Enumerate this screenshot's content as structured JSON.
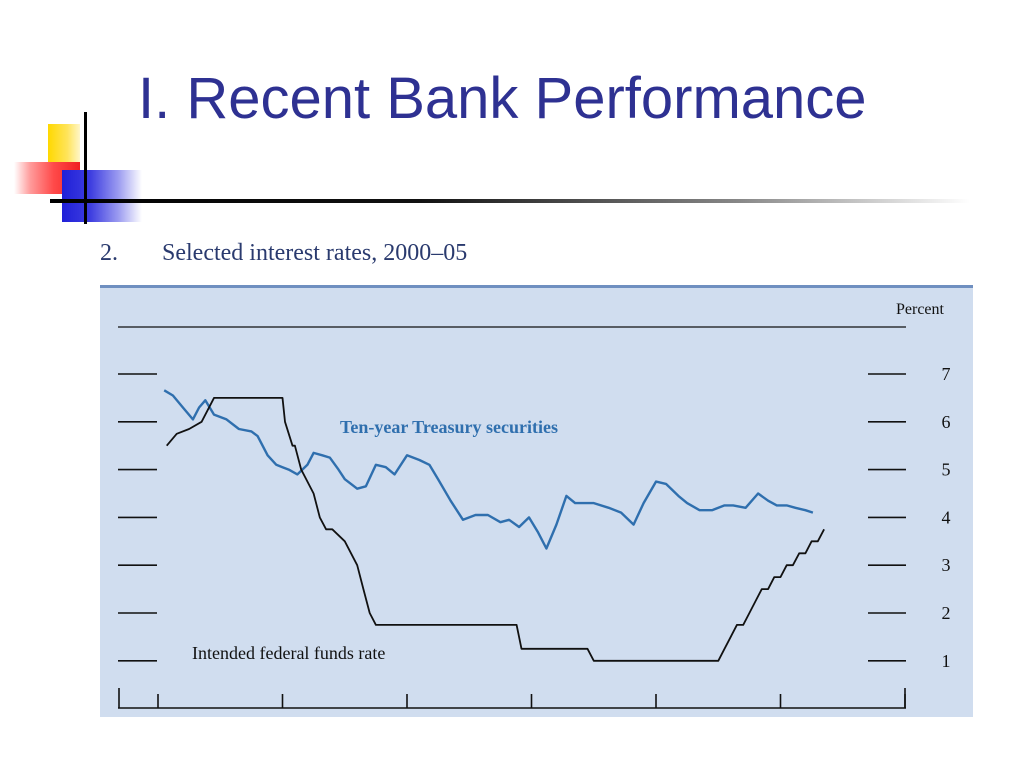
{
  "slide": {
    "title": "I. Recent Bank Performance"
  },
  "figure": {
    "number": "2.",
    "caption": "Selected interest rates, 2000–05"
  },
  "colors": {
    "title": "#2e3192",
    "panel_background": "#d0ddef",
    "treasury_line": "#2f6fae",
    "fed_funds_line": "#111111"
  },
  "chart_data": {
    "type": "line",
    "title": "Selected interest rates, 2000–05",
    "ylabel": "Percent",
    "ylim": [
      0,
      8
    ],
    "yticks": [
      1,
      2,
      3,
      4,
      5,
      6,
      7
    ],
    "xlim": [
      2000,
      2006
    ],
    "xticks": [
      2000,
      2001,
      2002,
      2003,
      2004,
      2005,
      2006
    ],
    "grid": false,
    "series": [
      {
        "name": "Ten-year Treasury securities",
        "color": "#2f6fae",
        "x": [
          2000.05,
          2000.12,
          2000.2,
          2000.28,
          2000.33,
          2000.38,
          2000.45,
          2000.55,
          2000.65,
          2000.75,
          2000.8,
          2000.88,
          2000.95,
          2001.0,
          2001.05,
          2001.12,
          2001.2,
          2001.25,
          2001.32,
          2001.38,
          2001.45,
          2001.5,
          2001.6,
          2001.67,
          2001.75,
          2001.83,
          2001.9,
          2002.0,
          2002.1,
          2002.18,
          2002.25,
          2002.35,
          2002.45,
          2002.55,
          2002.65,
          2002.75,
          2002.82,
          2002.9,
          2002.98,
          2003.05,
          2003.12,
          2003.2,
          2003.28,
          2003.35,
          2003.42,
          2003.5,
          2003.62,
          2003.72,
          2003.82,
          2003.9,
          2004.0,
          2004.08,
          2004.18,
          2004.25,
          2004.35,
          2004.45,
          2004.55,
          2004.62,
          2004.72,
          2004.82,
          2004.9,
          2004.97,
          2005.05,
          2005.12,
          2005.2,
          2005.26
        ],
        "values": [
          6.66,
          6.55,
          6.3,
          6.05,
          6.3,
          6.45,
          6.15,
          6.05,
          5.85,
          5.8,
          5.7,
          5.3,
          5.1,
          5.05,
          5.0,
          4.9,
          5.1,
          5.35,
          5.3,
          5.25,
          5.0,
          4.8,
          4.6,
          4.65,
          5.1,
          5.05,
          4.9,
          5.3,
          5.2,
          5.1,
          4.8,
          4.35,
          3.95,
          4.05,
          4.05,
          3.9,
          3.95,
          3.8,
          4.0,
          3.7,
          3.35,
          3.85,
          4.45,
          4.3,
          4.3,
          4.3,
          4.2,
          4.1,
          3.85,
          4.3,
          4.75,
          4.7,
          4.45,
          4.3,
          4.15,
          4.15,
          4.25,
          4.25,
          4.2,
          4.5,
          4.35,
          4.25,
          4.25,
          4.2,
          4.15,
          4.1
        ]
      },
      {
        "name": "Intended federal funds rate",
        "color": "#111111",
        "x": [
          2000.07,
          2000.15,
          2000.25,
          2000.35,
          2000.45,
          2001.0,
          2001.02,
          2001.08,
          2001.1,
          2001.15,
          2001.25,
          2001.3,
          2001.35,
          2001.4,
          2001.5,
          2001.6,
          2001.65,
          2001.7,
          2001.75,
          2001.8,
          2001.85,
          2001.9,
          2001.95,
          2002.0,
          2002.88,
          2002.92,
          2003.0,
          2003.45,
          2003.5,
          2003.55,
          2004.5,
          2004.55,
          2004.6,
          2004.65,
          2004.7,
          2004.75,
          2004.8,
          2004.85,
          2004.9,
          2004.95,
          2005.0,
          2005.05,
          2005.1,
          2005.15,
          2005.2,
          2005.25,
          2005.3,
          2005.35
        ],
        "values": [
          5.5,
          5.75,
          5.85,
          6.0,
          6.5,
          6.5,
          6.0,
          5.5,
          5.5,
          5.0,
          4.5,
          4.0,
          3.75,
          3.75,
          3.5,
          3.0,
          2.5,
          2.0,
          1.75,
          1.75,
          1.75,
          1.75,
          1.75,
          1.75,
          1.75,
          1.25,
          1.25,
          1.25,
          1.0,
          1.0,
          1.0,
          1.25,
          1.5,
          1.75,
          1.75,
          2.0,
          2.25,
          2.5,
          2.5,
          2.75,
          2.75,
          3.0,
          3.0,
          3.25,
          3.25,
          3.5,
          3.5,
          3.75
        ]
      }
    ],
    "annotations": [
      {
        "text": "Ten-year Treasury securities",
        "series": 0
      },
      {
        "text": "Intended federal funds rate",
        "series": 1
      }
    ]
  }
}
